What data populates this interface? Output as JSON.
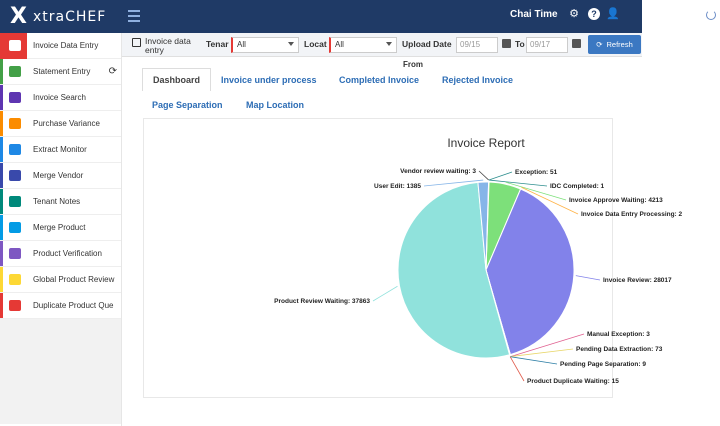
{
  "brand": {
    "mark": "X",
    "name": "xtraCHEF"
  },
  "header": {
    "user_name": "Chai Time",
    "icons": [
      "menu-icon",
      "gear-icon",
      "help-icon",
      "user-icon"
    ]
  },
  "sidebar": {
    "items": [
      {
        "label": "Invoice Data Entry",
        "icon": "edit-icon",
        "color": "#e53935"
      },
      {
        "label": "Statement Entry",
        "icon": "edit-icon",
        "color": "#43a047"
      },
      {
        "label": "Invoice Search",
        "icon": "search-icon",
        "color": "#5e35b1"
      },
      {
        "label": "Purchase Variance",
        "icon": "cart-icon",
        "color": "#fb8c00"
      },
      {
        "label": "Extract Monitor",
        "icon": "monitor-icon",
        "color": "#1e88e5"
      },
      {
        "label": "Merge Vendor",
        "icon": "copy-icon",
        "color": "#3949ab"
      },
      {
        "label": "Tenant Notes",
        "icon": "note-icon",
        "color": "#00897b"
      },
      {
        "label": "Merge Product",
        "icon": "merge-icon",
        "color": "#039be5"
      },
      {
        "label": "Product Verification",
        "icon": "grid-icon",
        "color": "#7e57c2"
      },
      {
        "label": "Global Product Review",
        "icon": "grid-icon",
        "color": "#fdd835"
      },
      {
        "label": "Duplicate Product Que",
        "icon": "list-icon",
        "color": "#e53935"
      }
    ]
  },
  "filter": {
    "title": "Invoice data entry",
    "tenant_label": "Tenar",
    "tenant_value": "All",
    "location_label": "Locat",
    "location_value": "All",
    "upload_date_label": "Upload Date",
    "from_label": "From",
    "from_date": "09/15",
    "to_label": "To",
    "to_date": "09/17",
    "refresh_label": "Refresh"
  },
  "tabs": [
    {
      "label": "Dashboard",
      "active": true
    },
    {
      "label": "Invoice under process"
    },
    {
      "label": "Completed Invoice"
    },
    {
      "label": "Rejected Invoice"
    },
    {
      "label": "Page Separation"
    },
    {
      "label": "Map Location"
    }
  ],
  "chart_data": {
    "type": "pie",
    "title": "Invoice Report",
    "slices": [
      {
        "label": "Exception",
        "value": 51,
        "color": "#2f8f8f"
      },
      {
        "label": "IDC Completed",
        "value": 1,
        "color": "#2f8f8f"
      },
      {
        "label": "Invoice Approve Waiting",
        "value": 4213,
        "color": "#7de07a"
      },
      {
        "label": "Invoice Data Entry Processing",
        "value": 2,
        "color": "#ffb347"
      },
      {
        "label": "Invoice Review",
        "value": 28017,
        "color": "#8282ea"
      },
      {
        "label": "Manual Exception",
        "value": 3,
        "color": "#e06090"
      },
      {
        "label": "Pending Data Extraction",
        "value": 73,
        "color": "#e8d66a"
      },
      {
        "label": "Pending Page Separation",
        "value": 9,
        "color": "#2e7fa6"
      },
      {
        "label": "Product Duplicate Waiting",
        "value": 15,
        "color": "#e05a4a"
      },
      {
        "label": "Product Review Waiting",
        "value": 37863,
        "color": "#90e2dc"
      },
      {
        "label": "User Edit",
        "value": 1385,
        "color": "#86b5e8"
      },
      {
        "label": "Vendor review waiting",
        "value": 3,
        "color": "#444444"
      }
    ]
  }
}
